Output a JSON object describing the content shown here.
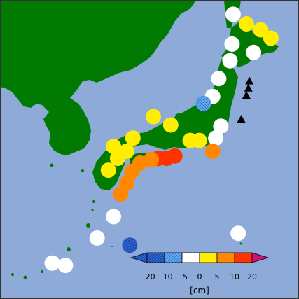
{
  "colors": {
    "sea": "#8eaad8",
    "land": "#007a00",
    "frame": "#333333",
    "markers": [
      "#3370e0",
      "#66aaee",
      "#ffffff",
      "#ffee00",
      "#ff8800",
      "#ff3300",
      "#cc1177"
    ]
  },
  "legend": {
    "ticks": [
      "−20",
      "−10",
      "−5",
      "0",
      "5",
      "10",
      "20"
    ],
    "unit": "[cm]",
    "pattern_icon": "crosshatch-pattern",
    "triangle_icon": "black-triangle"
  },
  "stations": [
    {
      "category": "-5..0",
      "lon": 141.3,
      "lat": 45.4
    },
    {
      "category": "0..5",
      "lon": 142.6,
      "lat": 44.6
    },
    {
      "category": "0..5",
      "lon": 144.0,
      "lat": 44.1
    },
    {
      "category": "0..5",
      "lon": 145.0,
      "lat": 43.4
    },
    {
      "category": "-5..0",
      "lon": 141.2,
      "lat": 42.9
    },
    {
      "category": "-5..0",
      "lon": 143.3,
      "lat": 42.2
    },
    {
      "category": "-5..0",
      "lon": 141.0,
      "lat": 41.5
    },
    {
      "category": "-5..0",
      "lon": 139.9,
      "lat": 40.0
    },
    {
      "category": "-5..0",
      "lon": 139.3,
      "lat": 38.5
    },
    {
      "category": "-10..-5",
      "lon": 138.4,
      "lat": 37.9
    },
    {
      "category": "0..5",
      "lon": 133.5,
      "lat": 36.8
    },
    {
      "category": "0..5",
      "lon": 135.2,
      "lat": 36.1
    },
    {
      "category": "0..5",
      "lon": 131.5,
      "lat": 35.0
    },
    {
      "category": "0..5",
      "lon": 129.6,
      "lat": 34.3
    },
    {
      "category": "0..5",
      "lon": 130.9,
      "lat": 33.9
    },
    {
      "category": "0..5",
      "lon": 129.1,
      "lat": 32.3
    },
    {
      "category": "0..5",
      "lon": 130.0,
      "lat": 33.3
    },
    {
      "category": "0..5",
      "lon": 137.1,
      "lat": 34.8
    },
    {
      "category": "0..5",
      "lon": 138.0,
      "lat": 34.8
    },
    {
      "category": "-5..0",
      "lon": 139.6,
      "lat": 35.0
    },
    {
      "category": "-5..0",
      "lon": 140.1,
      "lat": 36.0
    },
    {
      "category": "5..10",
      "lon": 139.3,
      "lat": 33.9
    },
    {
      "category": "10..20",
      "lon": 135.6,
      "lat": 33.5
    },
    {
      "category": "10..20",
      "lon": 134.8,
      "lat": 33.3
    },
    {
      "category": "10..20",
      "lon": 134.0,
      "lat": 33.3
    },
    {
      "category": "5..10",
      "lon": 133.3,
      "lat": 33.2
    },
    {
      "category": "5..10",
      "lon": 132.2,
      "lat": 32.9
    },
    {
      "category": "5..10",
      "lon": 131.4,
      "lat": 32.2
    },
    {
      "category": "5..10",
      "lon": 130.9,
      "lat": 31.2
    },
    {
      "category": "5..10",
      "lon": 130.3,
      "lat": 30.3
    },
    {
      "category": "-5..0",
      "lon": 129.6,
      "lat": 28.4
    },
    {
      "category": "-5..0",
      "lon": 128.0,
      "lat": 26.6
    },
    {
      "category": "-5..0",
      "lon": 141.8,
      "lat": 27.0
    },
    {
      "category": "-20..-10",
      "lon": 131.2,
      "lat": 26.0
    },
    {
      "category": "-5..0",
      "lon": 123.6,
      "lat": 24.5
    },
    {
      "category": "-5..0",
      "lon": 124.9,
      "lat": 24.3
    }
  ],
  "event_markers": [
    {
      "lon": 142.9,
      "lat": 39.8
    },
    {
      "lon": 142.8,
      "lat": 39.2
    },
    {
      "lon": 142.6,
      "lat": 38.6
    },
    {
      "lon": 142.1,
      "lat": 36.6
    }
  ]
}
